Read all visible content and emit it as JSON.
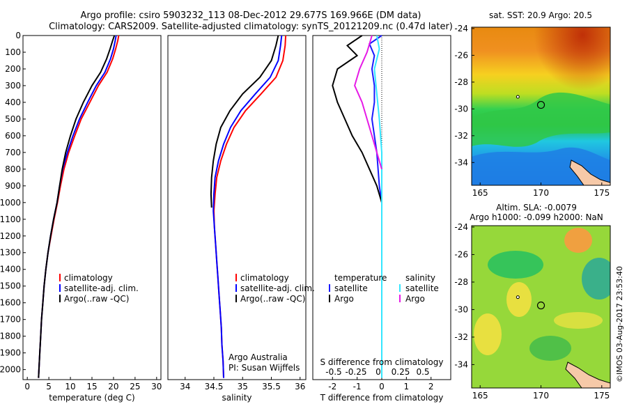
{
  "header": {
    "line1": "Argo profile: csiro 5903232_113 08-Dec-2012 29.677S 169.966E (DM data)",
    "line2": "Climatology: CARS2009. Satellite-adjusted climatology: synTS_20121209.nc (0.47d later)"
  },
  "watermark": "©IMOS 03-Aug-2017 23:53:40",
  "colors": {
    "climatology": "#ff0000",
    "satellite": "#0000ff",
    "argo": "#000000",
    "t_sat": "#1a1aff",
    "s_sat": "#33e6ff",
    "s_argo": "#e619e6",
    "land": "#f6c9a8"
  },
  "chart_data": [
    {
      "type": "line",
      "xlabel": "temperature (deg C)",
      "ylabel": "",
      "xlim": [
        -1,
        31
      ],
      "ylim": [
        0,
        2060
      ],
      "xticks": [
        "0",
        "5",
        "10",
        "15",
        "20",
        "25",
        "30"
      ],
      "yticks": [
        "0",
        "100",
        "200",
        "300",
        "400",
        "500",
        "600",
        "700",
        "800",
        "900",
        "1000",
        "1100",
        "1200",
        "1300",
        "1400",
        "1500",
        "1600",
        "1700",
        "1800",
        "1900",
        "2000"
      ],
      "legend": [
        "climatology",
        "satellite-adj. clim.",
        "Argo(..raw -QC)"
      ],
      "series": [
        {
          "name": "climatology",
          "color": "#ff0000",
          "points": [
            [
              21.2,
              0
            ],
            [
              21.0,
              30
            ],
            [
              20.5,
              80
            ],
            [
              19.8,
              140
            ],
            [
              18.5,
              220
            ],
            [
              16.5,
              300
            ],
            [
              14.5,
              400
            ],
            [
              12.5,
              500
            ],
            [
              11.0,
              600
            ],
            [
              9.6,
              700
            ],
            [
              8.5,
              800
            ],
            [
              7.7,
              900
            ],
            [
              7.0,
              1000
            ],
            [
              6.2,
              1100
            ],
            [
              5.5,
              1200
            ],
            [
              4.8,
              1300
            ],
            [
              4.3,
              1400
            ],
            [
              3.9,
              1500
            ],
            [
              3.6,
              1600
            ],
            [
              3.3,
              1700
            ],
            [
              3.1,
              1800
            ],
            [
              2.9,
              1900
            ],
            [
              2.7,
              2000
            ],
            [
              2.6,
              2050
            ]
          ]
        },
        {
          "name": "satellite-adj. clim.",
          "color": "#0000ff",
          "points": [
            [
              20.6,
              0
            ],
            [
              20.4,
              30
            ],
            [
              20.0,
              80
            ],
            [
              19.3,
              140
            ],
            [
              18.0,
              220
            ],
            [
              16.0,
              300
            ],
            [
              14.0,
              400
            ],
            [
              12.1,
              500
            ],
            [
              10.6,
              600
            ],
            [
              9.3,
              700
            ],
            [
              8.2,
              800
            ],
            [
              7.5,
              900
            ],
            [
              6.9,
              1000
            ],
            [
              6.1,
              1100
            ],
            [
              5.4,
              1200
            ],
            [
              4.8,
              1300
            ],
            [
              4.3,
              1400
            ],
            [
              3.9,
              1500
            ],
            [
              3.6,
              1600
            ],
            [
              3.3,
              1700
            ],
            [
              3.1,
              1800
            ],
            [
              2.9,
              1900
            ],
            [
              2.7,
              2000
            ],
            [
              2.6,
              2050
            ]
          ]
        },
        {
          "name": "Argo(..raw -QC)",
          "color": "#000000",
          "points": [
            [
              20.2,
              0
            ],
            [
              19.8,
              30
            ],
            [
              19.2,
              80
            ],
            [
              18.4,
              140
            ],
            [
              17.0,
              220
            ],
            [
              15.0,
              300
            ],
            [
              13.0,
              400
            ],
            [
              11.3,
              500
            ],
            [
              10.0,
              600
            ],
            [
              8.9,
              700
            ],
            [
              8.1,
              800
            ],
            [
              7.5,
              900
            ],
            [
              6.9,
              1000
            ],
            [
              6.1,
              1100
            ],
            [
              5.4,
              1200
            ],
            [
              4.8,
              1300
            ],
            [
              4.3,
              1400
            ],
            [
              3.9,
              1500
            ],
            [
              3.6,
              1600
            ],
            [
              3.3,
              1700
            ],
            [
              3.1,
              1800
            ],
            [
              2.9,
              1900
            ],
            [
              2.7,
              2000
            ],
            [
              2.6,
              2050
            ]
          ]
        }
      ]
    },
    {
      "type": "line",
      "xlabel": "salinity",
      "ylabel": "",
      "xlim": [
        33.7,
        36.1
      ],
      "ylim": [
        0,
        2060
      ],
      "xticks": [
        "34",
        "34.5",
        "35",
        "35.5",
        "36"
      ],
      "legend": [
        "climatology",
        "satellite-adj. clim.",
        "Argo(..raw -QC)"
      ],
      "series": [
        {
          "name": "climatology",
          "color": "#ff0000",
          "points": [
            [
              35.75,
              0
            ],
            [
              35.74,
              60
            ],
            [
              35.7,
              150
            ],
            [
              35.58,
              250
            ],
            [
              35.32,
              350
            ],
            [
              35.05,
              450
            ],
            [
              34.85,
              550
            ],
            [
              34.72,
              650
            ],
            [
              34.62,
              750
            ],
            [
              34.55,
              850
            ],
            [
              34.52,
              950
            ],
            [
              34.5,
              1050
            ],
            [
              34.51,
              1150
            ],
            [
              34.53,
              1250
            ],
            [
              34.55,
              1350
            ],
            [
              34.57,
              1450
            ],
            [
              34.59,
              1550
            ],
            [
              34.61,
              1650
            ],
            [
              34.63,
              1750
            ],
            [
              34.64,
              1850
            ],
            [
              34.66,
              1950
            ],
            [
              34.67,
              2050
            ]
          ]
        },
        {
          "name": "satellite-adj. clim.",
          "color": "#0000ff",
          "points": [
            [
              35.68,
              0
            ],
            [
              35.66,
              60
            ],
            [
              35.62,
              150
            ],
            [
              35.48,
              250
            ],
            [
              35.22,
              350
            ],
            [
              34.97,
              450
            ],
            [
              34.79,
              550
            ],
            [
              34.67,
              650
            ],
            [
              34.58,
              750
            ],
            [
              34.52,
              850
            ],
            [
              34.5,
              950
            ],
            [
              34.49,
              1050
            ],
            [
              34.51,
              1150
            ],
            [
              34.53,
              1250
            ],
            [
              34.55,
              1350
            ],
            [
              34.57,
              1450
            ],
            [
              34.59,
              1550
            ],
            [
              34.61,
              1650
            ],
            [
              34.63,
              1750
            ],
            [
              34.64,
              1850
            ],
            [
              34.66,
              1950
            ],
            [
              34.67,
              2050
            ]
          ]
        },
        {
          "name": "Argo(..raw -QC)",
          "color": "#000000",
          "points": [
            [
              35.62,
              0
            ],
            [
              35.58,
              60
            ],
            [
              35.5,
              150
            ],
            [
              35.3,
              250
            ],
            [
              35.0,
              350
            ],
            [
              34.78,
              450
            ],
            [
              34.62,
              550
            ],
            [
              34.54,
              650
            ],
            [
              34.49,
              750
            ],
            [
              34.46,
              850
            ],
            [
              34.45,
              950
            ],
            [
              34.46,
              1030
            ]
          ]
        }
      ],
      "annotations": [
        "Argo Australia",
        "PI: Susan Wijffels"
      ]
    },
    {
      "type": "line",
      "xlabel": "T difference from climatology",
      "top_label": "S difference from climatology",
      "xlim": [
        -2.8,
        2.8
      ],
      "ylim": [
        0,
        2060
      ],
      "xticks": [
        "-2",
        "-1",
        "0",
        "1",
        "2"
      ],
      "top_ticks": [
        "-0.5",
        "-0.25",
        "0",
        "0.25",
        "0.5"
      ],
      "legend": {
        "temperature": [
          "satellite",
          "Argo"
        ],
        "salinity": [
          "satellite",
          "Argo"
        ]
      },
      "series": [
        {
          "name": "satellite",
          "group": "temperature",
          "color": "#1a1aff",
          "points": [
            [
              0,
              0
            ],
            [
              -0.5,
              50
            ],
            [
              -0.3,
              120
            ],
            [
              -0.4,
              200
            ],
            [
              -0.3,
              300
            ],
            [
              -0.3,
              400
            ],
            [
              -0.4,
              500
            ],
            [
              -0.3,
              600
            ],
            [
              -0.2,
              700
            ],
            [
              -0.15,
              800
            ],
            [
              -0.1,
              900
            ],
            [
              0,
              1000
            ],
            [
              0,
              1200
            ]
          ]
        },
        {
          "name": "Argo",
          "group": "temperature",
          "color": "#000000",
          "points": [
            [
              -0.8,
              0
            ],
            [
              -1.4,
              60
            ],
            [
              -1.0,
              120
            ],
            [
              -1.8,
              200
            ],
            [
              -2.0,
              300
            ],
            [
              -1.8,
              400
            ],
            [
              -1.5,
              500
            ],
            [
              -1.2,
              600
            ],
            [
              -0.8,
              700
            ],
            [
              -0.5,
              800
            ],
            [
              -0.2,
              900
            ],
            [
              0,
              1000
            ]
          ]
        },
        {
          "name": "satellite",
          "group": "salinity",
          "color": "#33e6ff",
          "points": [
            [
              -0.2,
              0
            ],
            [
              -0.1,
              80
            ],
            [
              -0.3,
              200
            ],
            [
              -0.2,
              350
            ],
            [
              -0.1,
              500
            ],
            [
              0,
              700
            ],
            [
              0,
              1300
            ],
            [
              0,
              2050
            ]
          ]
        },
        {
          "name": "Argo",
          "group": "salinity",
          "color": "#e619e6",
          "points": [
            [
              -0.4,
              0
            ],
            [
              -0.6,
              100
            ],
            [
              -0.9,
              200
            ],
            [
              -1.1,
              300
            ],
            [
              -0.8,
              400
            ],
            [
              -0.6,
              500
            ],
            [
              -0.4,
              600
            ],
            [
              -0.2,
              700
            ],
            [
              0,
              800
            ]
          ]
        }
      ]
    },
    {
      "type": "heatmap",
      "title": "sat. SST: 20.9 Argo: 20.5",
      "xlim": [
        164.3,
        175.7
      ],
      "ylim": [
        -35.7,
        -23.9
      ],
      "xticks": [
        "165",
        "170",
        "175"
      ],
      "yticks": [
        "-24",
        "-26",
        "-28",
        "-30",
        "-32",
        "-34"
      ],
      "markers": [
        [
          168.1,
          -29.1
        ],
        [
          170.0,
          -29.7
        ]
      ]
    },
    {
      "type": "heatmap",
      "title": "Altim. SLA: -0.0079",
      "subtitle": "Argo h1000: -0.099 h2000: NaN",
      "xlim": [
        164.3,
        175.7
      ],
      "ylim": [
        -35.7,
        -23.9
      ],
      "xticks": [
        "165",
        "170",
        "175"
      ],
      "yticks": [
        "-24",
        "-26",
        "-28",
        "-30",
        "-32",
        "-34"
      ],
      "markers": [
        [
          168.1,
          -29.1
        ],
        [
          170.0,
          -29.7
        ]
      ]
    }
  ]
}
